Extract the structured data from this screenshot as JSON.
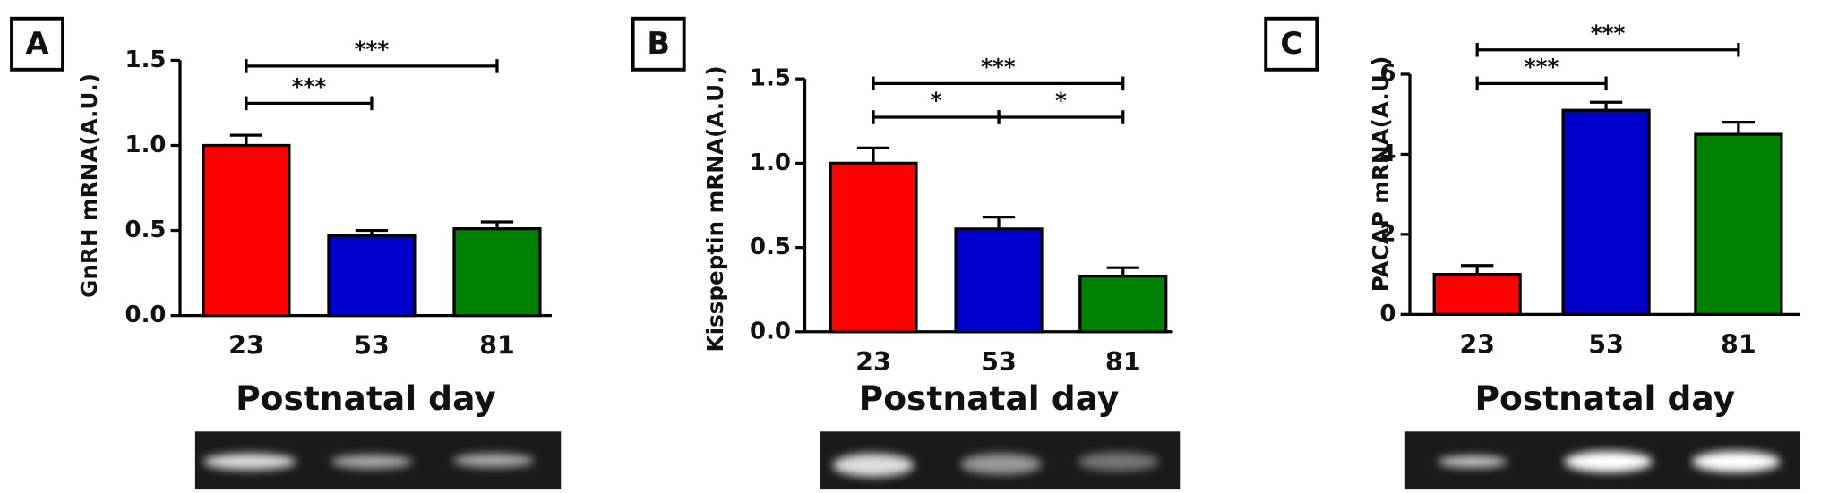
{
  "chart_data": [
    {
      "type": "bar",
      "panel": "A",
      "y_label": "GnRH mRNA(A.U.)",
      "x_label": "Postnatal day",
      "categories": [
        "23",
        "53",
        "81"
      ],
      "values": [
        1.0,
        0.47,
        0.51
      ],
      "errors": [
        0.06,
        0.03,
        0.04
      ],
      "colors": [
        "#ff0000",
        "#0000cc",
        "#008000"
      ],
      "ylim": [
        0,
        1.5
      ],
      "yticks": [
        {
          "value": 0,
          "label": "0.0"
        },
        {
          "value": 0.5,
          "label": "0.5"
        },
        {
          "value": 1,
          "label": "1.0"
        },
        {
          "value": 1.5,
          "label": "1.5"
        }
      ],
      "brackets": [
        {
          "from": "23",
          "to": "81",
          "label": "***"
        },
        {
          "from": "23",
          "to": "53",
          "label": "***"
        }
      ]
    },
    {
      "type": "bar",
      "panel": "B",
      "y_label": "Kisspeptin mRNA(A.U.)",
      "x_label": "Postnatal day",
      "categories": [
        "23",
        "53",
        "81"
      ],
      "values": [
        1.0,
        0.61,
        0.33
      ],
      "errors": [
        0.09,
        0.07,
        0.05
      ],
      "colors": [
        "#ff0000",
        "#0000cc",
        "#008000"
      ],
      "ylim": [
        0,
        1.5
      ],
      "yticks": [
        {
          "value": 0,
          "label": "0.0"
        },
        {
          "value": 0.5,
          "label": "0.5"
        },
        {
          "value": 1,
          "label": "1.0"
        },
        {
          "value": 1.5,
          "label": "1.5"
        }
      ],
      "brackets": [
        {
          "from": "23",
          "to": "81",
          "label": "***"
        },
        {
          "from": "23",
          "to": "53",
          "label": "*"
        },
        {
          "from": "53",
          "to": "81",
          "label": "*"
        }
      ]
    },
    {
      "type": "bar",
      "panel": "C",
      "y_label": "PACAP mRNA(A.U.)",
      "x_label": "Postnatal day",
      "categories": [
        "23",
        "53",
        "81"
      ],
      "values": [
        1.0,
        5.1,
        4.5
      ],
      "errors": [
        0.22,
        0.2,
        0.3
      ],
      "colors": [
        "#ff0000",
        "#0000cc",
        "#008000"
      ],
      "ylim": [
        0,
        6
      ],
      "yticks": [
        0,
        2,
        4,
        6
      ],
      "brackets": [
        {
          "from": "23",
          "to": "81",
          "label": "***"
        },
        {
          "from": "23",
          "to": "53",
          "label": "***"
        }
      ]
    }
  ]
}
